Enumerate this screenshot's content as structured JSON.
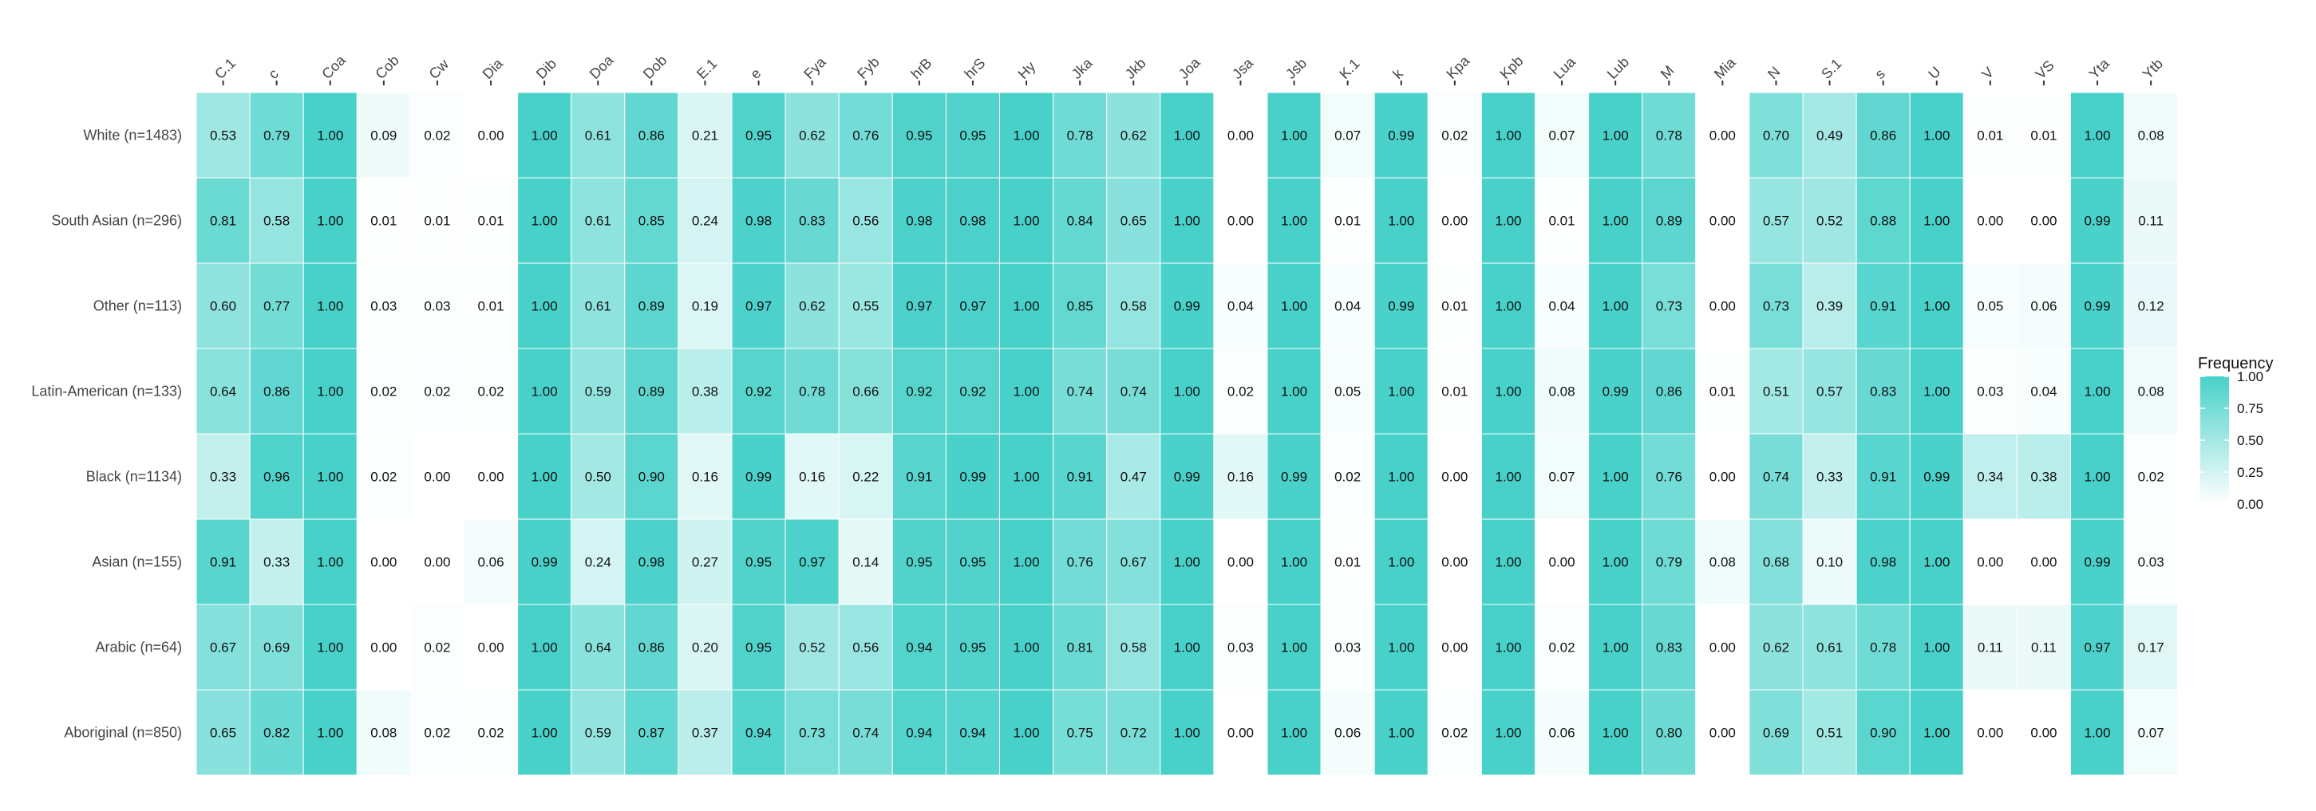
{
  "chart_data": {
    "type": "heatmap",
    "columns": [
      "C.1",
      "c",
      "Coa",
      "Cob",
      "Cw",
      "Dia",
      "Dib",
      "Doa",
      "Dob",
      "E.1",
      "e",
      "Fya",
      "Fyb",
      "hrB",
      "hrS",
      "Hy",
      "Jka",
      "Jkb",
      "Joa",
      "Jsa",
      "Jsb",
      "K.1",
      "k",
      "Kpa",
      "Kpb",
      "Lua",
      "Lub",
      "M",
      "Mia",
      "N",
      "S.1",
      "s",
      "U",
      "V",
      "VS",
      "Yta",
      "Ytb"
    ],
    "rows": [
      "White (n=1483)",
      "South Asian (n=296)",
      "Other (n=113)",
      "Latin-American (n=133)",
      "Black (n=1134)",
      "Asian (n=155)",
      "Arabic (n=64)",
      "Aboriginal (n=850)"
    ],
    "values": [
      [
        "0.53",
        "0.79",
        "1.00",
        "0.09",
        "0.02",
        "0.00",
        "1.00",
        "0.61",
        "0.86",
        "0.21",
        "0.95",
        "0.62",
        "0.76",
        "0.95",
        "0.95",
        "1.00",
        "0.78",
        "0.62",
        "1.00",
        "0.00",
        "1.00",
        "0.07",
        "0.99",
        "0.02",
        "1.00",
        "0.07",
        "1.00",
        "0.78",
        "0.00",
        "0.70",
        "0.49",
        "0.86",
        "1.00",
        "0.01",
        "0.01",
        "1.00",
        "0.08"
      ],
      [
        "0.81",
        "0.58",
        "1.00",
        "0.01",
        "0.01",
        "0.01",
        "1.00",
        "0.61",
        "0.85",
        "0.24",
        "0.98",
        "0.83",
        "0.56",
        "0.98",
        "0.98",
        "1.00",
        "0.84",
        "0.65",
        "1.00",
        "0.00",
        "1.00",
        "0.01",
        "1.00",
        "0.00",
        "1.00",
        "0.01",
        "1.00",
        "0.89",
        "0.00",
        "0.57",
        "0.52",
        "0.88",
        "1.00",
        "0.00",
        "0.00",
        "0.99",
        "0.11"
      ],
      [
        "0.60",
        "0.77",
        "1.00",
        "0.03",
        "0.03",
        "0.01",
        "1.00",
        "0.61",
        "0.89",
        "0.19",
        "0.97",
        "0.62",
        "0.55",
        "0.97",
        "0.97",
        "1.00",
        "0.85",
        "0.58",
        "0.99",
        "0.04",
        "1.00",
        "0.04",
        "0.99",
        "0.01",
        "1.00",
        "0.04",
        "1.00",
        "0.73",
        "0.00",
        "0.73",
        "0.39",
        "0.91",
        "1.00",
        "0.05",
        "0.06",
        "0.99",
        "0.12"
      ],
      [
        "0.64",
        "0.86",
        "1.00",
        "0.02",
        "0.02",
        "0.02",
        "1.00",
        "0.59",
        "0.89",
        "0.38",
        "0.92",
        "0.78",
        "0.66",
        "0.92",
        "0.92",
        "1.00",
        "0.74",
        "0.74",
        "1.00",
        "0.02",
        "1.00",
        "0.05",
        "1.00",
        "0.01",
        "1.00",
        "0.08",
        "0.99",
        "0.86",
        "0.01",
        "0.51",
        "0.57",
        "0.83",
        "1.00",
        "0.03",
        "0.04",
        "1.00",
        "0.08"
      ],
      [
        "0.33",
        "0.96",
        "1.00",
        "0.02",
        "0.00",
        "0.00",
        "1.00",
        "0.50",
        "0.90",
        "0.16",
        "0.99",
        "0.16",
        "0.22",
        "0.91",
        "0.99",
        "1.00",
        "0.91",
        "0.47",
        "0.99",
        "0.16",
        "0.99",
        "0.02",
        "1.00",
        "0.00",
        "1.00",
        "0.07",
        "1.00",
        "0.76",
        "0.00",
        "0.74",
        "0.33",
        "0.91",
        "0.99",
        "0.34",
        "0.38",
        "1.00",
        "0.02"
      ],
      [
        "0.91",
        "0.33",
        "1.00",
        "0.00",
        "0.00",
        "0.06",
        "0.99",
        "0.24",
        "0.98",
        "0.27",
        "0.95",
        "0.97",
        "0.14",
        "0.95",
        "0.95",
        "1.00",
        "0.76",
        "0.67",
        "1.00",
        "0.00",
        "1.00",
        "0.01",
        "1.00",
        "0.00",
        "1.00",
        "0.00",
        "1.00",
        "0.79",
        "0.08",
        "0.68",
        "0.10",
        "0.98",
        "1.00",
        "0.00",
        "0.00",
        "0.99",
        "0.03"
      ],
      [
        "0.67",
        "0.69",
        "1.00",
        "0.00",
        "0.02",
        "0.00",
        "1.00",
        "0.64",
        "0.86",
        "0.20",
        "0.95",
        "0.52",
        "0.56",
        "0.94",
        "0.95",
        "1.00",
        "0.81",
        "0.58",
        "1.00",
        "0.03",
        "1.00",
        "0.03",
        "1.00",
        "0.00",
        "1.00",
        "0.02",
        "1.00",
        "0.83",
        "0.00",
        "0.62",
        "0.61",
        "0.78",
        "1.00",
        "0.11",
        "0.11",
        "0.97",
        "0.17"
      ],
      [
        "0.65",
        "0.82",
        "1.00",
        "0.08",
        "0.02",
        "0.02",
        "1.00",
        "0.59",
        "0.87",
        "0.37",
        "0.94",
        "0.73",
        "0.74",
        "0.94",
        "0.94",
        "1.00",
        "0.75",
        "0.72",
        "1.00",
        "0.00",
        "1.00",
        "0.06",
        "1.00",
        "0.02",
        "1.00",
        "0.06",
        "1.00",
        "0.80",
        "0.00",
        "0.69",
        "0.51",
        "0.90",
        "1.00",
        "0.00",
        "0.00",
        "1.00",
        "0.07"
      ]
    ],
    "legend": {
      "title": "Frequency",
      "ticks": [
        "1.00",
        "0.75",
        "0.50",
        "0.25",
        "0.00"
      ],
      "range": [
        0,
        1
      ],
      "placement": "right"
    },
    "colors": {
      "low": "#ffffff",
      "high": "#48d1c9"
    },
    "grid": false
  }
}
